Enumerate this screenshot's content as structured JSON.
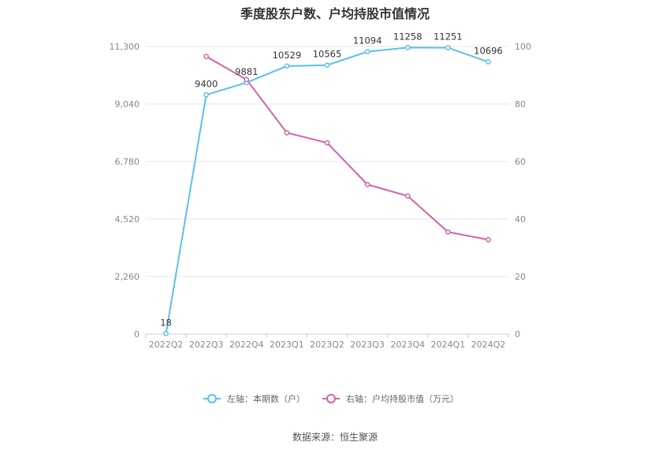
{
  "source_text": "数据来源：恒生聚源",
  "chart_data": {
    "type": "line",
    "title": "季度股东户数、户均持股市值情况",
    "categories": [
      "2022Q2",
      "2022Q3",
      "2022Q4",
      "2023Q1",
      "2023Q2",
      "2023Q3",
      "2023Q4",
      "2024Q1",
      "2024Q2"
    ],
    "left_axis": {
      "ylim": [
        0,
        11300
      ],
      "ticks": [
        0,
        2260,
        4520,
        6780,
        9040,
        11300
      ],
      "tick_labels": [
        "0",
        "2,260",
        "4,520",
        "6,780",
        "9,040",
        "11,300"
      ]
    },
    "right_axis": {
      "ylim": [
        0,
        100
      ],
      "ticks": [
        0,
        20,
        40,
        60,
        80,
        100
      ],
      "tick_labels": [
        "0",
        "20",
        "40",
        "60",
        "80",
        "100"
      ]
    },
    "grid": true,
    "legend_position": "bottom",
    "series": [
      {
        "name": "左轴：本期数（户）",
        "axis": "left",
        "color": "#5bc0eb",
        "values": [
          18,
          9400,
          9881,
          10529,
          10565,
          11094,
          11258,
          11251,
          10696
        ],
        "data_labels": [
          "18",
          "9400",
          "9881",
          "10529",
          "10565",
          "11094",
          "11258",
          "11251",
          "10696"
        ]
      },
      {
        "name": "右轴：户均持股市值（万元）",
        "axis": "right",
        "color": "#d063a8",
        "values": [
          null,
          96.5,
          88.5,
          70.0,
          66.5,
          52.0,
          48.0,
          35.5,
          32.8
        ],
        "data_labels": []
      }
    ]
  }
}
